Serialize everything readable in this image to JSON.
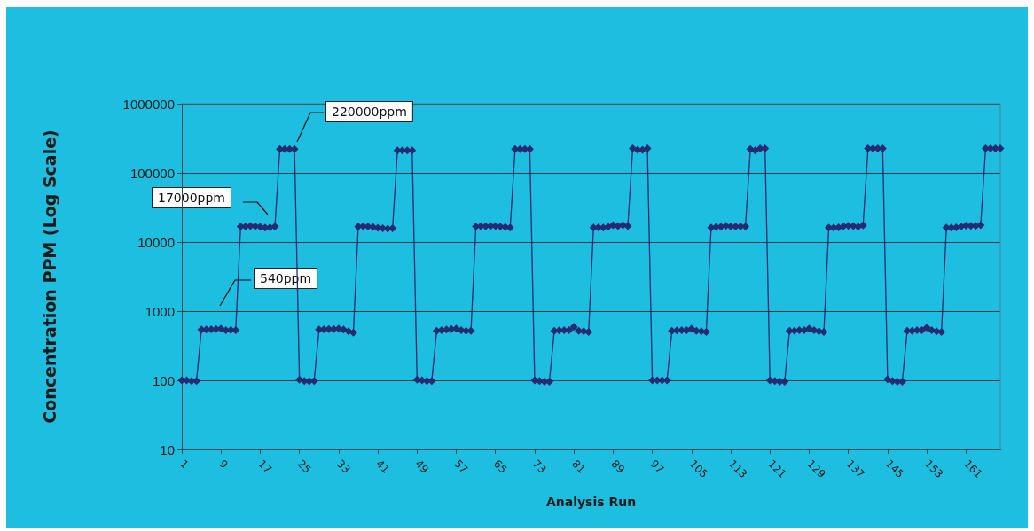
{
  "chart_data": {
    "type": "line",
    "xlabel": "Analysis Run",
    "ylabel": "Concentration PPM (Log Scale)",
    "categories": [
      "1",
      null,
      null,
      null,
      null,
      null,
      null,
      null,
      "9",
      null,
      null,
      null,
      null,
      null,
      null,
      null,
      "17",
      null,
      null,
      null,
      null,
      null,
      null,
      null,
      "25",
      null,
      null,
      null,
      null,
      null,
      null,
      null,
      "33",
      null,
      null,
      null,
      null,
      null,
      null,
      null,
      "41",
      null,
      null,
      null,
      null,
      null,
      null,
      null,
      "49",
      null,
      null,
      null,
      null,
      null,
      null,
      null,
      "57",
      null,
      null,
      null,
      null,
      null,
      null,
      null,
      "65",
      null,
      null,
      null,
      null,
      null,
      null,
      null,
      "73",
      null,
      null,
      null,
      null,
      null,
      null,
      null,
      "81",
      null,
      null,
      null,
      null,
      null,
      null,
      null,
      "89",
      null,
      null,
      null,
      null,
      null,
      null,
      null,
      "97",
      null,
      null,
      null,
      null,
      null,
      null,
      null,
      "105",
      null,
      null,
      null,
      null,
      null,
      null,
      null,
      "113",
      null,
      null,
      null,
      null,
      null,
      null,
      null,
      "121",
      null,
      null,
      null,
      null,
      null,
      null,
      null,
      "129",
      null,
      null,
      null,
      null,
      null,
      null,
      null,
      "137",
      null,
      null,
      null,
      null,
      null,
      null,
      null,
      "145",
      null,
      null,
      null,
      null,
      null,
      null,
      null,
      "153",
      null,
      null,
      null,
      null,
      null,
      null,
      null,
      "161",
      null,
      null,
      null,
      null,
      null,
      null,
      null
    ],
    "series": [
      {
        "color": "#262a72",
        "values": [
          100,
          100,
          98,
          98,
          540,
          540,
          545,
          550,
          560,
          530,
          535,
          530,
          16800,
          16800,
          17000,
          16900,
          16700,
          16200,
          16300,
          16800,
          220000,
          220000,
          220000,
          220000,
          102,
          98,
          97,
          98,
          540,
          545,
          550,
          550,
          560,
          540,
          510,
          490,
          16800,
          16900,
          16800,
          16500,
          16000,
          15800,
          15600,
          15800,
          210000,
          210000,
          210000,
          210000,
          102,
          100,
          98,
          98,
          520,
          530,
          540,
          550,
          560,
          530,
          520,
          520,
          16800,
          16900,
          16900,
          17000,
          17000,
          16800,
          16500,
          16200,
          220000,
          220000,
          220000,
          220000,
          100,
          98,
          96,
          96,
          520,
          525,
          530,
          530,
          590,
          520,
          510,
          500,
          16200,
          16300,
          16200,
          16600,
          17500,
          17000,
          17500,
          17000,
          225000,
          215000,
          215000,
          225000,
          100,
          100,
          100,
          100,
          520,
          525,
          530,
          530,
          560,
          520,
          510,
          500,
          16200,
          16500,
          16700,
          17200,
          16800,
          16800,
          16800,
          16800,
          220000,
          210000,
          225000,
          225000,
          100,
          98,
          96,
          96,
          520,
          520,
          530,
          530,
          560,
          530,
          510,
          500,
          16200,
          16200,
          16300,
          16900,
          17200,
          17000,
          16700,
          17400,
          225000,
          225000,
          225000,
          225000,
          104,
          98,
          96,
          96,
          520,
          520,
          530,
          530,
          580,
          530,
          510,
          500,
          16200,
          16200,
          16300,
          16800,
          17300,
          17200,
          17100,
          17500,
          225000,
          225000,
          225000,
          225000
        ]
      }
    ],
    "log": true,
    "ylim": [
      10,
      1000000
    ],
    "yticks": [
      10,
      100,
      1000,
      10000,
      100000,
      1000000
    ],
    "grid": "y",
    "marker": "diamond",
    "line_style": "solid",
    "annotations": [
      "220000ppm",
      "17000ppm",
      "540ppm"
    ]
  }
}
